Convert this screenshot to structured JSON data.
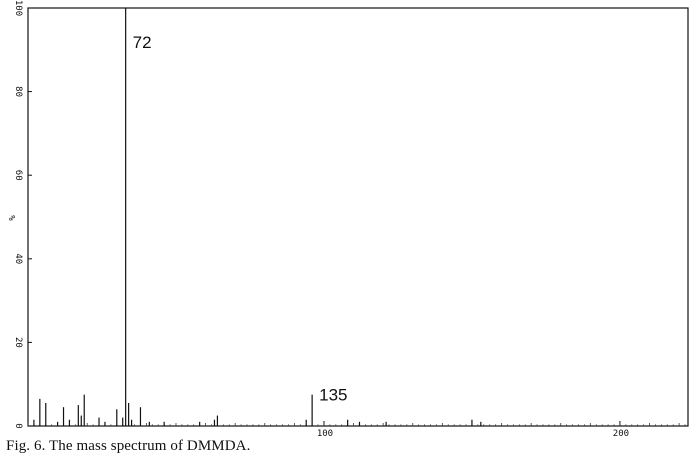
{
  "caption": "Fig. 6. The mass spectrum of DMMDA.",
  "chart_data": {
    "type": "bar",
    "title": "",
    "xlabel": "",
    "ylabel": "%",
    "xlim": [
      0,
      223
    ],
    "ylim": [
      0,
      100
    ],
    "x_ticks": [
      "100",
      "200"
    ],
    "y_ticks": [
      "0",
      "20",
      "40",
      "60",
      "80",
      "100"
    ],
    "grid": false,
    "peaks": [
      {
        "mz": 2,
        "intensity": 1.5
      },
      {
        "mz": 4,
        "intensity": 6.5
      },
      {
        "mz": 6,
        "intensity": 5.5
      },
      {
        "mz": 10,
        "intensity": 1
      },
      {
        "mz": 12,
        "intensity": 4.5
      },
      {
        "mz": 14,
        "intensity": 1.5
      },
      {
        "mz": 17,
        "intensity": 5
      },
      {
        "mz": 18,
        "intensity": 2.5
      },
      {
        "mz": 19,
        "intensity": 7.5
      },
      {
        "mz": 24,
        "intensity": 2
      },
      {
        "mz": 26,
        "intensity": 1
      },
      {
        "mz": 30,
        "intensity": 4
      },
      {
        "mz": 32,
        "intensity": 2
      },
      {
        "mz": 33,
        "intensity": 100
      },
      {
        "mz": 34,
        "intensity": 5.5
      },
      {
        "mz": 35,
        "intensity": 1.5
      },
      {
        "mz": 38,
        "intensity": 4.5
      },
      {
        "mz": 41,
        "intensity": 1
      },
      {
        "mz": 46,
        "intensity": 1
      },
      {
        "mz": 58,
        "intensity": 1
      },
      {
        "mz": 63,
        "intensity": 1.5
      },
      {
        "mz": 64,
        "intensity": 2.5
      },
      {
        "mz": 94,
        "intensity": 1.5
      },
      {
        "mz": 96,
        "intensity": 7.5
      },
      {
        "mz": 108,
        "intensity": 1.5
      },
      {
        "mz": 112,
        "intensity": 1
      },
      {
        "mz": 121,
        "intensity": 1
      },
      {
        "mz": 150,
        "intensity": 1.5
      },
      {
        "mz": 153,
        "intensity": 1
      }
    ],
    "peak_labels": [
      {
        "mz": 33,
        "intensity": 100,
        "text": "72"
      },
      {
        "mz": 96,
        "intensity": 7.5,
        "text": "135"
      }
    ]
  }
}
